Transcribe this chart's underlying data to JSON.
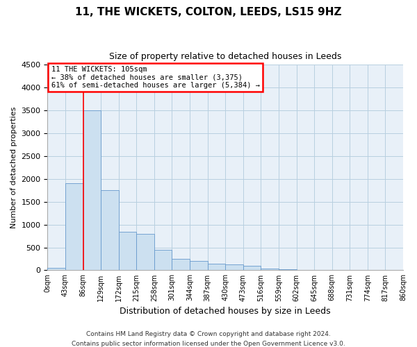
{
  "title": "11, THE WICKETS, COLTON, LEEDS, LS15 9HZ",
  "subtitle": "Size of property relative to detached houses in Leeds",
  "xlabel": "Distribution of detached houses by size in Leeds",
  "ylabel": "Number of detached properties",
  "bar_color": "#cce0f0",
  "bar_edge_color": "#6699cc",
  "grid_color": "#b8cfe0",
  "background_color": "#e8f0f8",
  "red_line_x": 86,
  "annotation_line1": "11 THE WICKETS: 105sqm",
  "annotation_line2": "← 38% of detached houses are smaller (3,375)",
  "annotation_line3": "61% of semi-detached houses are larger (5,384) →",
  "footer_line1": "Contains HM Land Registry data © Crown copyright and database right 2024.",
  "footer_line2": "Contains public sector information licensed under the Open Government Licence v3.0.",
  "bin_edges": [
    0,
    43,
    86,
    129,
    172,
    215,
    258,
    301,
    344,
    387,
    430,
    473,
    516,
    559,
    602,
    645,
    688,
    731,
    774,
    817,
    860
  ],
  "bar_heights": [
    50,
    1900,
    3500,
    1750,
    850,
    800,
    450,
    250,
    200,
    150,
    125,
    100,
    40,
    15,
    10,
    8,
    5,
    3,
    2,
    1
  ],
  "ylim": [
    0,
    4500
  ],
  "yticks": [
    0,
    500,
    1000,
    1500,
    2000,
    2500,
    3000,
    3500,
    4000,
    4500
  ]
}
